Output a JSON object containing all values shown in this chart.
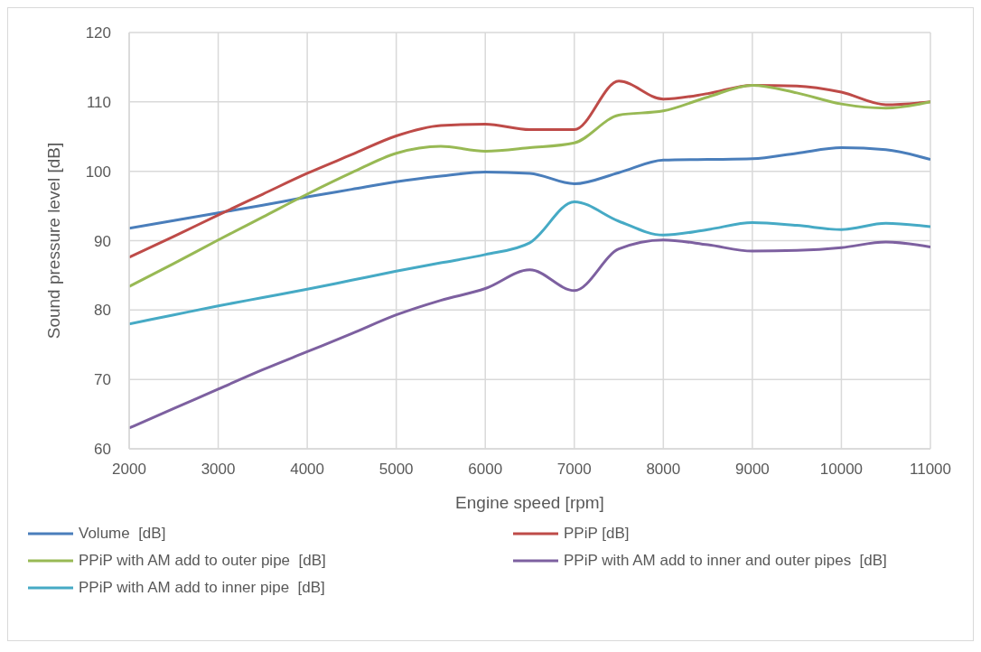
{
  "chart_data": {
    "type": "line",
    "xlabel": "Engine speed [rpm]",
    "ylabel": "Sound pressure level [dB]",
    "x": [
      2000,
      2500,
      3000,
      3500,
      4000,
      4500,
      5000,
      5500,
      6000,
      6500,
      7000,
      7500,
      8000,
      8500,
      9000,
      9500,
      10000,
      10500,
      11000
    ],
    "series": [
      {
        "name": "Volume  [dB]",
        "color": "#4a7ebb",
        "values": [
          91.8,
          92.9,
          94.0,
          95.1,
          96.3,
          97.4,
          98.5,
          99.3,
          99.9,
          99.7,
          98.2,
          99.8,
          101.6,
          101.7,
          101.8,
          102.6,
          103.4,
          103.1,
          101.7
        ]
      },
      {
        "name": "PPiP [dB]",
        "color": "#be4b48",
        "values": [
          87.6,
          90.6,
          93.7,
          96.7,
          99.7,
          102.4,
          105.1,
          106.6,
          106.8,
          106.0,
          106.0,
          113.0,
          110.4,
          111.2,
          112.4,
          112.3,
          111.4,
          109.6,
          110.0
        ]
      },
      {
        "name": "PPiP with AM add to outer pipe  [dB]",
        "color": "#98b954",
        "values": [
          83.4,
          86.7,
          90.1,
          93.4,
          96.7,
          99.8,
          102.6,
          103.6,
          102.9,
          103.4,
          104.1,
          108.1,
          108.7,
          110.7,
          112.4,
          111.3,
          109.7,
          109.1,
          110.0
        ]
      },
      {
        "name": "PPiP with AM add to inner and outer pipes  [dB]",
        "color": "#7d60a0",
        "values": [
          63.0,
          65.8,
          68.6,
          71.4,
          74.0,
          76.6,
          79.3,
          81.4,
          83.1,
          85.8,
          82.8,
          88.8,
          90.1,
          89.4,
          88.5,
          88.6,
          89.0,
          89.8,
          89.1
        ]
      },
      {
        "name": "PPiP with AM add to inner pipe  [dB]",
        "color": "#46aac5",
        "values": [
          78.0,
          79.3,
          80.6,
          81.8,
          83.0,
          84.3,
          85.6,
          86.8,
          88.0,
          89.7,
          95.6,
          92.8,
          90.8,
          91.6,
          92.6,
          92.2,
          91.6,
          92.5,
          92.0
        ]
      }
    ],
    "xlim": [
      2000,
      11000
    ],
    "xticks": [
      2000,
      3000,
      4000,
      5000,
      6000,
      7000,
      8000,
      9000,
      10000,
      11000
    ],
    "ylim": [
      60,
      120
    ],
    "yticks": [
      60,
      70,
      80,
      90,
      100,
      110,
      120
    ],
    "grid": true,
    "legend": "bottom",
    "marker": "none",
    "line_style": "solid"
  }
}
